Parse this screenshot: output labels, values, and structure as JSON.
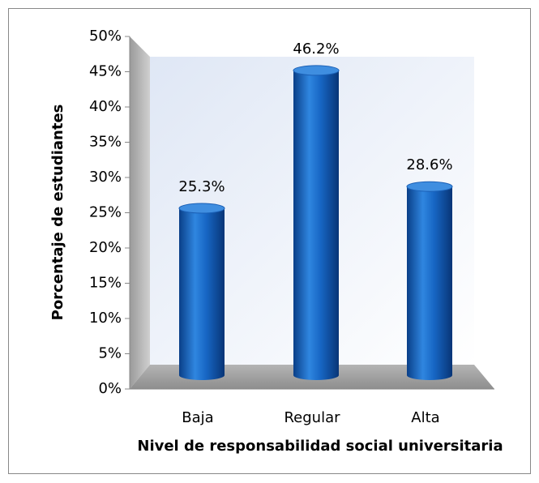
{
  "chart_data": {
    "type": "bar",
    "categories": [
      "Baja",
      "Regular",
      "Alta"
    ],
    "values": [
      25.3,
      46.2,
      28.6
    ],
    "value_labels": [
      "25.3%",
      "46.2%",
      "28.6%"
    ],
    "color": "#1560c0",
    "ylim": [
      0,
      50
    ],
    "yticks": [
      {
        "value": 0,
        "label": "0%"
      },
      {
        "value": 5,
        "label": "5%"
      },
      {
        "value": 10,
        "label": "10%"
      },
      {
        "value": 15,
        "label": "15%"
      },
      {
        "value": 20,
        "label": "20%"
      },
      {
        "value": 25,
        "label": "25%"
      },
      {
        "value": 30,
        "label": "30%"
      },
      {
        "value": 35,
        "label": "35%"
      },
      {
        "value": 40,
        "label": "40%"
      },
      {
        "value": 45,
        "label": "45%"
      },
      {
        "value": 50,
        "label": "50%"
      }
    ],
    "ylabel": "Porcentaje de estudiantes",
    "xlabel": "Nivel de responsabilidad  social universitaria"
  }
}
